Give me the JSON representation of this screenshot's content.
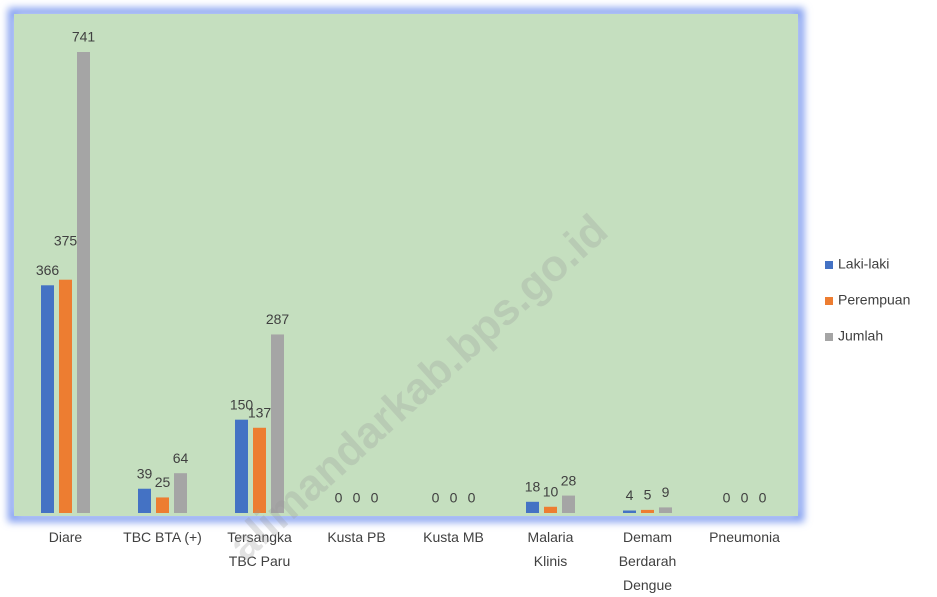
{
  "chart_data": {
    "type": "bar",
    "categories": [
      "Diare",
      "TBC BTA (+)",
      "Tersangka TBC Paru",
      "Kusta PB",
      "Kusta MB",
      "Malaria Klinis",
      "Demam Berdarah Dengue",
      "Pneumonia"
    ],
    "series": [
      {
        "name": "Laki-laki",
        "color": "#4472c4",
        "values": [
          366,
          39,
          150,
          0,
          0,
          18,
          4,
          0
        ]
      },
      {
        "name": "Perempuan",
        "color": "#ed7d31",
        "values": [
          375,
          25,
          137,
          0,
          0,
          10,
          5,
          0
        ]
      },
      {
        "name": "Jumlah",
        "color": "#a5a5a5",
        "values": [
          741,
          64,
          287,
          0,
          0,
          28,
          9,
          0
        ]
      }
    ],
    "legend": "right",
    "watermark": "alimandarkab.bps.go.id"
  }
}
